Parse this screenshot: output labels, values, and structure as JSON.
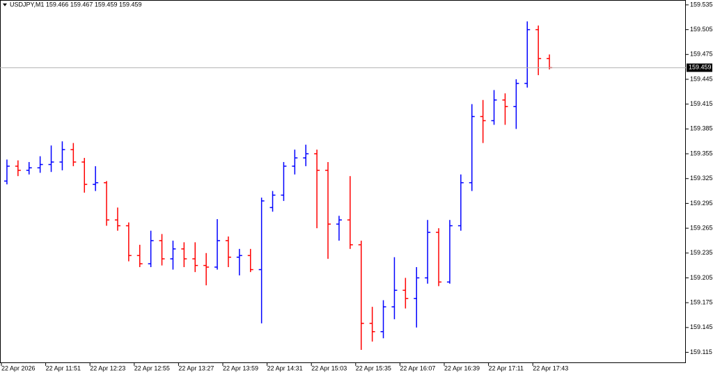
{
  "chart_data": {
    "type": "ohlc",
    "title": "USDJPY,M1 159.466 159.467 159.459 159.459",
    "categories": [
      "22 Apr 2026",
      null,
      null,
      null,
      "22 Apr 11:51",
      null,
      null,
      null,
      "22 Apr 12:23",
      null,
      null,
      null,
      "22 Apr 12:55",
      null,
      null,
      null,
      "22 Apr 13:27",
      null,
      null,
      null,
      "22 Apr 13:59",
      null,
      null,
      null,
      "22 Apr 14:31",
      null,
      null,
      null,
      "22 Apr 15:03",
      null,
      null,
      null,
      "22 Apr 15:35",
      null,
      null,
      null,
      "22 Apr 16:07",
      null,
      null,
      null,
      "22 Apr 16:39",
      null,
      null,
      null,
      "22 Apr 17:11",
      null,
      null,
      null,
      "22 Apr 17:43",
      null
    ],
    "open": [
      159.322,
      159.34,
      159.335,
      159.338,
      159.342,
      159.345,
      159.36,
      159.345,
      159.318,
      159.32,
      159.275,
      159.268,
      159.232,
      159.222,
      159.25,
      159.228,
      159.24,
      159.228,
      159.22,
      159.218,
      159.25,
      159.23,
      159.232,
      159.215,
      159.29,
      159.305,
      159.34,
      159.35,
      159.355,
      159.335,
      159.27,
      159.275,
      159.245,
      159.15,
      159.14,
      159.17,
      159.19,
      159.18,
      159.205,
      159.26,
      159.2,
      159.268,
      159.32,
      159.4,
      159.395,
      159.42,
      159.412,
      159.44,
      159.505,
      159.47
    ],
    "high": [
      159.348,
      159.347,
      159.345,
      159.352,
      159.365,
      159.37,
      159.368,
      159.35,
      159.34,
      159.322,
      159.29,
      159.272,
      159.245,
      159.262,
      159.258,
      159.25,
      159.248,
      159.248,
      159.235,
      159.276,
      159.255,
      159.24,
      159.24,
      159.302,
      159.31,
      159.345,
      159.36,
      159.366,
      159.36,
      159.345,
      159.28,
      159.328,
      159.25,
      159.17,
      159.178,
      159.23,
      159.205,
      159.218,
      159.275,
      159.265,
      159.275,
      159.33,
      159.415,
      159.42,
      159.432,
      159.428,
      159.445,
      159.515,
      159.51,
      159.475
    ],
    "low": [
      159.318,
      159.328,
      159.33,
      159.332,
      159.333,
      159.335,
      159.34,
      159.308,
      159.31,
      159.268,
      159.262,
      159.225,
      159.218,
      159.218,
      159.22,
      159.215,
      159.218,
      159.212,
      159.196,
      159.215,
      159.218,
      159.208,
      159.212,
      159.15,
      159.285,
      159.298,
      159.33,
      159.34,
      159.265,
      159.228,
      159.25,
      159.24,
      159.118,
      159.128,
      159.132,
      159.155,
      159.168,
      159.145,
      159.198,
      159.195,
      159.198,
      159.262,
      159.31,
      159.368,
      159.39,
      159.39,
      159.385,
      159.435,
      159.45,
      159.457
    ],
    "close": [
      159.34,
      159.335,
      159.338,
      159.342,
      159.345,
      159.36,
      159.345,
      159.318,
      159.32,
      159.275,
      159.268,
      159.232,
      159.222,
      159.25,
      159.228,
      159.24,
      159.228,
      159.22,
      159.218,
      159.25,
      159.23,
      159.232,
      159.215,
      159.298,
      159.305,
      159.34,
      159.35,
      159.355,
      159.335,
      159.27,
      159.275,
      159.245,
      159.15,
      159.14,
      159.17,
      159.19,
      159.18,
      159.205,
      159.26,
      159.2,
      159.268,
      159.32,
      159.4,
      159.395,
      159.42,
      159.412,
      159.44,
      159.505,
      159.47,
      159.459
    ],
    "up_color": "#0000ff",
    "down_color": "#ff0000",
    "current_price": 159.459,
    "ylim": [
      159.102,
      159.54
    ],
    "yticks": [
      159.535,
      159.505,
      159.475,
      159.445,
      159.415,
      159.385,
      159.355,
      159.325,
      159.295,
      159.265,
      159.235,
      159.205,
      159.175,
      159.145,
      159.115
    ]
  }
}
